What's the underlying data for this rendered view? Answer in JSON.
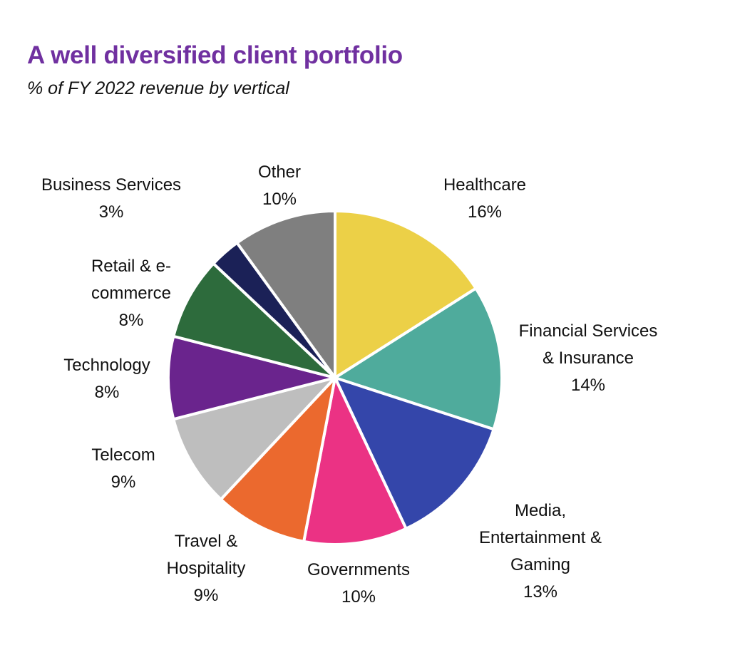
{
  "chart_data": {
    "type": "pie",
    "title": "A well diversified client portfolio",
    "subtitle": "% of FY 2022 revenue by vertical",
    "start": "12 o'clock",
    "direction": "clockwise",
    "slices": [
      {
        "label": "Healthcare",
        "value": 16,
        "value_label": "16%",
        "color": "#ECD047"
      },
      {
        "label": "Financial Services\n& Insurance",
        "value": 14,
        "value_label": "14%",
        "color": "#4FAB9C"
      },
      {
        "label": "Media,\nEntertainment &\nGaming",
        "value": 13,
        "value_label": "13%",
        "color": "#3446AA"
      },
      {
        "label": "Governments",
        "value": 10,
        "value_label": "10%",
        "color": "#EB3284"
      },
      {
        "label": "Travel &\nHospitality",
        "value": 9,
        "value_label": "9%",
        "color": "#EB692E"
      },
      {
        "label": "Telecom",
        "value": 9,
        "value_label": "9%",
        "color": "#BEBEBE"
      },
      {
        "label": "Technology",
        "value": 8,
        "value_label": "8%",
        "color": "#6A248D"
      },
      {
        "label": "Retail & e-\ncommerce",
        "value": 8,
        "value_label": "8%",
        "color": "#2D6B3C"
      },
      {
        "label": "Business Services",
        "value": 3,
        "value_label": "3%",
        "color": "#1B2157"
      },
      {
        "label": "Other",
        "value": 10,
        "value_label": "10%",
        "color": "#7F7F7F"
      }
    ]
  },
  "colors": {
    "title": "#7030A0",
    "slice_border": "#FFFFFF"
  }
}
